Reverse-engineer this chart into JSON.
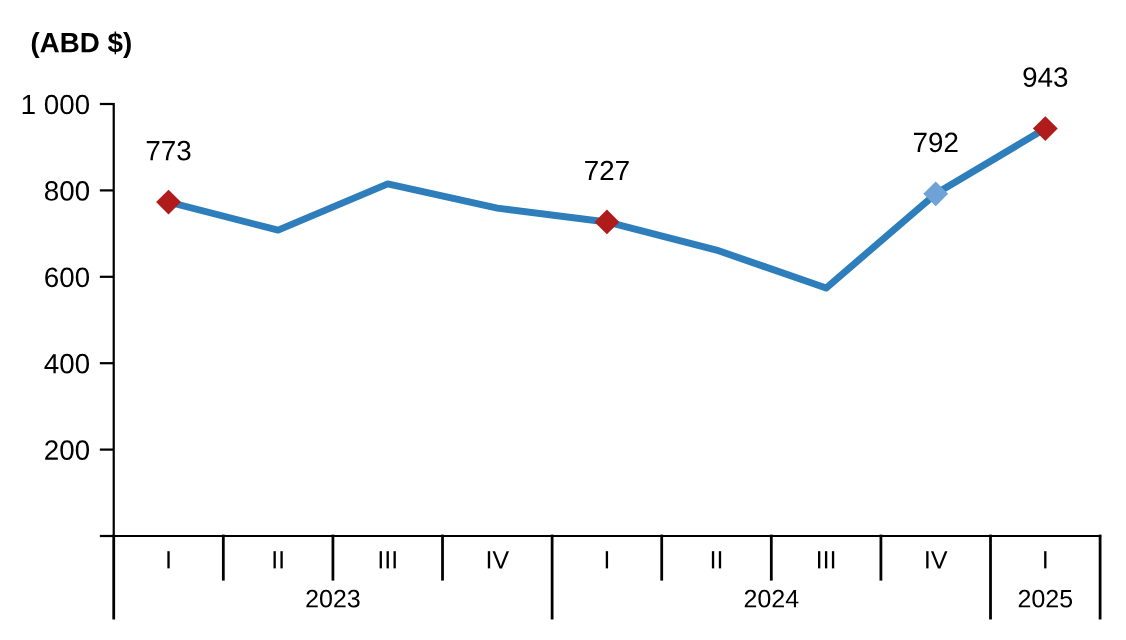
{
  "chart_data": {
    "type": "line",
    "ylabel": "(ABD $)",
    "categories": [
      "I",
      "II",
      "III",
      "IV",
      "I",
      "II",
      "III",
      "IV",
      "I"
    ],
    "series": [
      {
        "color": "#2e7ebc",
        "values": [
          773,
          708,
          815,
          759,
          727,
          662,
          574,
          792,
          943
        ]
      },
      {
        "type": "scatter",
        "marker": "diamond",
        "values": [
          773,
          null,
          null,
          null,
          727,
          null,
          null,
          792,
          943
        ],
        "colors": [
          "#b01c1c",
          null,
          null,
          null,
          "#b01c1c",
          null,
          null,
          "#6fa3d8",
          "#b01c1c"
        ],
        "value_labels": [
          "773",
          null,
          null,
          null,
          "727",
          null,
          null,
          "792",
          "943"
        ]
      }
    ],
    "line_style": "solid",
    "ylim": [
      0,
      1000
    ],
    "yticks": [
      {
        "value": 0,
        "label": null
      },
      200,
      400,
      600,
      800,
      {
        "value": 1000,
        "label": "1 000"
      }
    ],
    "annotations": [
      "2023",
      "2024",
      "2025"
    ],
    "grid": false,
    "legend": false
  }
}
